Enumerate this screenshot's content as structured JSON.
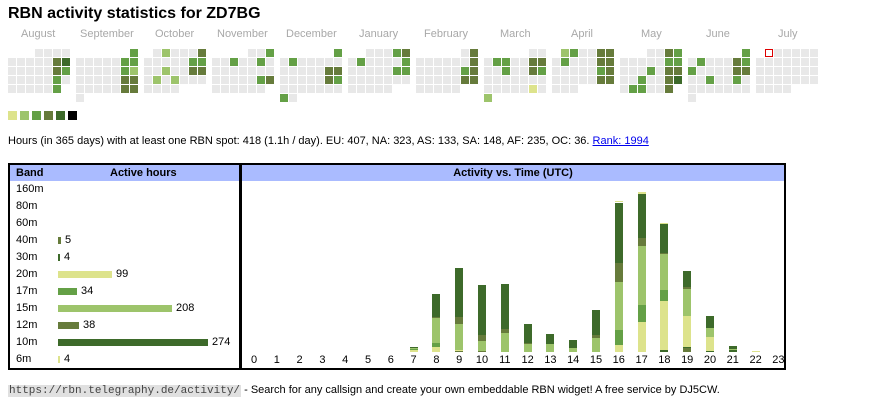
{
  "title": "RBN activity statistics for ZD7BG",
  "colors": {
    "empty": "#e8e8e8",
    "level1": "#dde38c",
    "level2": "#9dc46b",
    "level3": "#64a046",
    "level4": "#667b3b",
    "level5": "#3d6a2a",
    "level6": "#000000",
    "today_outline": "#dd0000",
    "header_bg": "#aabbff",
    "link": "#0000ee"
  },
  "calendar": {
    "months": [
      {
        "name": "August",
        "first_col": 3,
        "weeks": [
          [
            0,
            0,
            0,
            0
          ],
          [
            0,
            0,
            0,
            0,
            0,
            4,
            5
          ],
          [
            0,
            0,
            0,
            0,
            0,
            4,
            3
          ],
          [
            0,
            0,
            0,
            0,
            0,
            3,
            0
          ],
          [
            0,
            0,
            0,
            0,
            0,
            3
          ]
        ]
      },
      {
        "name": "September",
        "first_col": 6,
        "weeks": [
          [
            3
          ],
          [
            0,
            0,
            0,
            0,
            0,
            3,
            3
          ],
          [
            0,
            0,
            0,
            0,
            0,
            3,
            2
          ],
          [
            0,
            0,
            0,
            0,
            0,
            4,
            4
          ],
          [
            0,
            0,
            0,
            0,
            0,
            4,
            4
          ],
          [
            0
          ]
        ]
      },
      {
        "name": "October",
        "first_col": 1,
        "weeks": [
          [
            0,
            2,
            0,
            0,
            0,
            4
          ],
          [
            0,
            0,
            0,
            0,
            0,
            3,
            3
          ],
          [
            0,
            0,
            2,
            0,
            0,
            4,
            4
          ],
          [
            0,
            2,
            0,
            2,
            0,
            0,
            0
          ],
          [
            0,
            0,
            0,
            0
          ]
        ]
      },
      {
        "name": "November",
        "first_col": 4,
        "weeks": [
          [
            0,
            0,
            3
          ],
          [
            0,
            0,
            3,
            0,
            0,
            3,
            0
          ],
          [
            0,
            0,
            0,
            0,
            0,
            0,
            0
          ],
          [
            0,
            0,
            0,
            0,
            0,
            3,
            4
          ],
          [
            0,
            0,
            0,
            0,
            0,
            0
          ]
        ]
      },
      {
        "name": "December",
        "first_col": 6,
        "weeks": [
          [
            3
          ],
          [
            0,
            3,
            0,
            0,
            0,
            0,
            0
          ],
          [
            0,
            0,
            0,
            0,
            0,
            4,
            4
          ],
          [
            0,
            0,
            0,
            0,
            0,
            4,
            3
          ],
          [
            0,
            0,
            0,
            0,
            0,
            0,
            0
          ],
          [
            3,
            0
          ]
        ]
      },
      {
        "name": "January",
        "first_col": 2,
        "weeks": [
          [
            0,
            0,
            0,
            3,
            4
          ],
          [
            0,
            3,
            0,
            0,
            0,
            0,
            3
          ],
          [
            0,
            0,
            0,
            0,
            0,
            3,
            3
          ],
          [
            0,
            0,
            0,
            0,
            0,
            0,
            0
          ],
          [
            0,
            0,
            0,
            0,
            0
          ]
        ]
      },
      {
        "name": "February",
        "first_col": 5,
        "weeks": [
          [
            0,
            4
          ],
          [
            0,
            0,
            0,
            0,
            0,
            0,
            4
          ],
          [
            0,
            0,
            0,
            0,
            0,
            3,
            4
          ],
          [
            0,
            0,
            0,
            0,
            0,
            4,
            4
          ],
          [
            0,
            0,
            0,
            0,
            0
          ]
        ]
      },
      {
        "name": "March",
        "first_col": 5,
        "weeks": [
          [
            0,
            0
          ],
          [
            0,
            3,
            3,
            0,
            0,
            4,
            4
          ],
          [
            0,
            0,
            3,
            0,
            0,
            4,
            3
          ],
          [
            0,
            0,
            0,
            0,
            0,
            0,
            0
          ],
          [
            0,
            0,
            0,
            0,
            0,
            1,
            0
          ],
          [
            2
          ]
        ]
      },
      {
        "name": "April",
        "first_col": 1,
        "weeks": [
          [
            2,
            3,
            0,
            0,
            4,
            4
          ],
          [
            0,
            3,
            0,
            0,
            0,
            4,
            4
          ],
          [
            0,
            0,
            0,
            0,
            0,
            3,
            4
          ],
          [
            0,
            0,
            0,
            0,
            0,
            4,
            4
          ],
          [
            0,
            0,
            0
          ]
        ]
      },
      {
        "name": "May",
        "first_col": 3,
        "weeks": [
          [
            0,
            0,
            4,
            3
          ],
          [
            0,
            0,
            0,
            0,
            0,
            3,
            3
          ],
          [
            0,
            0,
            0,
            3,
            0,
            4,
            4
          ],
          [
            0,
            0,
            3,
            0,
            0,
            4,
            5
          ],
          [
            0,
            3,
            3,
            0,
            0,
            4
          ]
        ]
      },
      {
        "name": "June",
        "first_col": 6,
        "weeks": [
          [
            3
          ],
          [
            0,
            3,
            0,
            0,
            0,
            4,
            3
          ],
          [
            3,
            0,
            0,
            0,
            0,
            4,
            4
          ],
          [
            0,
            0,
            3,
            0,
            0,
            3,
            0
          ],
          [
            0,
            0,
            0,
            0,
            0,
            0,
            0
          ],
          [
            0
          ]
        ]
      },
      {
        "name": "July",
        "first_col": 1,
        "today": [
          0,
          0
        ],
        "weeks": [
          [
            0,
            0,
            0,
            0,
            0,
            0
          ],
          [
            0,
            0,
            0,
            0,
            0,
            0,
            0
          ],
          [
            0,
            0,
            0,
            0,
            0,
            0,
            0
          ],
          [
            0,
            0,
            0,
            0,
            0,
            0,
            0
          ],
          [
            0,
            0,
            0,
            0
          ]
        ]
      }
    ],
    "legend_levels": [
      "level1",
      "level2",
      "level3",
      "level4",
      "level5",
      "level6"
    ]
  },
  "stats": {
    "text": "Hours (in 365 days) with at least one RBN spot: 418 (1.1h / day). EU: 407, NA: 323, AS: 133, SA: 148, AF: 235, OC: 36.",
    "rank_link": "Rank: 1994"
  },
  "bands_table": {
    "header_band": "Band",
    "header_hours": "Active hours",
    "max_hours": 274,
    "rows": [
      {
        "band": "160m",
        "hours": null,
        "color": "level5"
      },
      {
        "band": "80m",
        "hours": null,
        "color": "level5"
      },
      {
        "band": "60m",
        "hours": null,
        "color": "level5"
      },
      {
        "band": "40m",
        "hours": "5",
        "color": "level4"
      },
      {
        "band": "30m",
        "hours": "4",
        "color": "level5"
      },
      {
        "band": "20m",
        "hours": "99",
        "color": "level1"
      },
      {
        "band": "17m",
        "hours": "34",
        "color": "level3"
      },
      {
        "band": "15m",
        "hours": "208",
        "color": "level2"
      },
      {
        "band": "12m",
        "hours": "38",
        "color": "level4"
      },
      {
        "band": "10m",
        "hours": "274",
        "color": "level5"
      },
      {
        "band": "6m",
        "hours": "4",
        "color": "level1"
      }
    ]
  },
  "chart_data": {
    "type": "bar",
    "stacked": true,
    "title": "Activity vs. Time (UTC)",
    "xlabel": "",
    "ylabel": "",
    "categories": [
      "0",
      "1",
      "2",
      "3",
      "4",
      "5",
      "6",
      "7",
      "8",
      "9",
      "10",
      "11",
      "12",
      "13",
      "14",
      "15",
      "16",
      "17",
      "18",
      "19",
      "20",
      "21",
      "22",
      "23"
    ],
    "series": [
      {
        "name": "6m",
        "color": "level1",
        "values": [
          0,
          0,
          0,
          0,
          0,
          0,
          0,
          0,
          0,
          0,
          0,
          0,
          0,
          0,
          0,
          0,
          0.7,
          1.4,
          0.7,
          0,
          0,
          0,
          1,
          0
        ]
      },
      {
        "name": "10m",
        "color": "level5",
        "values": [
          0,
          0,
          0,
          0,
          0,
          0,
          0,
          0.7,
          16,
          34,
          35,
          31,
          13,
          7,
          5.5,
          18,
          42,
          31,
          20,
          11,
          8,
          2,
          0,
          0
        ]
      },
      {
        "name": "12m",
        "color": "level4",
        "values": [
          0,
          0,
          0,
          0,
          0,
          0,
          0,
          0,
          0.7,
          5,
          4,
          3,
          0.7,
          0,
          0,
          1.5,
          13,
          5,
          0.7,
          1.5,
          0,
          0,
          0,
          0
        ]
      },
      {
        "name": "15m",
        "color": "level2",
        "values": [
          0,
          0,
          0,
          0,
          0,
          0,
          0,
          0.7,
          17,
          18,
          7,
          13,
          5.5,
          5.5,
          3,
          10,
          34,
          41,
          25,
          19,
          6,
          0.7,
          0,
          0
        ]
      },
      {
        "name": "17m",
        "color": "level3",
        "values": [
          0,
          0,
          0,
          0,
          0,
          0,
          0,
          0.7,
          3,
          0,
          0,
          0,
          0,
          0,
          0,
          0,
          10,
          12,
          8,
          0,
          0,
          0,
          0,
          0
        ]
      },
      {
        "name": "20m",
        "color": "level1",
        "values": [
          0,
          0,
          0,
          0,
          0,
          0,
          0,
          1.4,
          3.5,
          0.7,
          0,
          0,
          0,
          0,
          0,
          0,
          5,
          21,
          34,
          21,
          10,
          0,
          0,
          0
        ]
      },
      {
        "name": "40m",
        "color": "level4",
        "values": [
          0,
          0,
          0,
          0,
          0,
          0,
          0,
          0,
          0,
          0.7,
          0.7,
          0,
          0,
          0,
          0,
          0,
          0,
          0,
          0,
          3,
          0,
          0,
          0,
          0
        ]
      },
      {
        "name": "30m",
        "color": "level5",
        "values": [
          0,
          0,
          0,
          0,
          0,
          0,
          0,
          0,
          0,
          0,
          0,
          0,
          0,
          0,
          0,
          0,
          0,
          0,
          1.4,
          0.7,
          0.7,
          1.4,
          0,
          0
        ]
      }
    ],
    "ymax": 112
  },
  "footer": {
    "url": "https://rbn.telegraphy.de/activity/",
    "text": " - Search for any callsign and create your own embeddable RBN widget! A free service by DJ5CW."
  }
}
